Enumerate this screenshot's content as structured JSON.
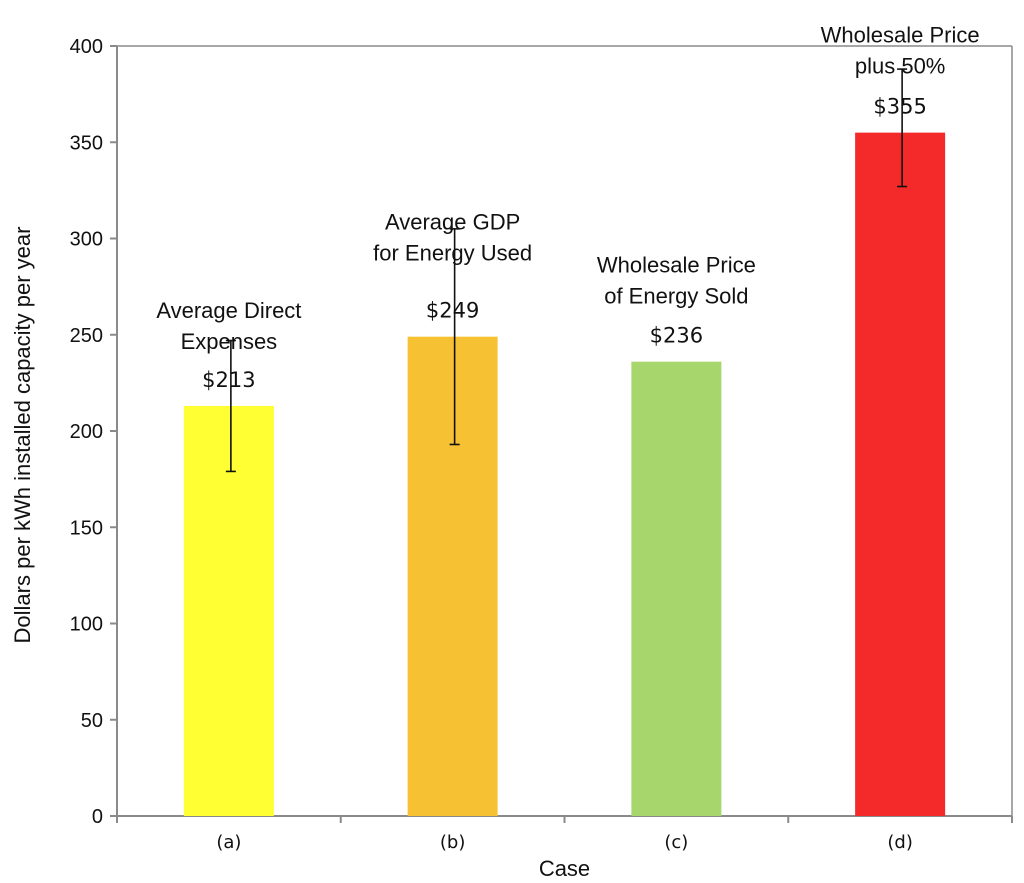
{
  "chart_data": {
    "type": "bar",
    "title": "",
    "xlabel": "Case",
    "ylabel": "Dollars per kWh installed capacity per year",
    "ylim": [
      0,
      400
    ],
    "yticks": [
      0,
      50,
      100,
      150,
      200,
      250,
      300,
      350,
      400
    ],
    "categories": [
      "(a)",
      "(b)",
      "(c)",
      "(d)"
    ],
    "values": [
      213,
      249,
      236,
      355
    ],
    "value_labels": [
      "$213",
      "$249",
      "$236",
      "$355"
    ],
    "error_bars": [
      {
        "low": 179,
        "high": 247
      },
      {
        "low": 193,
        "high": 305
      },
      null,
      {
        "low": 327,
        "high": 388
      }
    ],
    "bar_colors": [
      "#ffff33",
      "#f6c233",
      "#a6d66c",
      "#f42a2a"
    ],
    "annotations": [
      [
        "Average Direct",
        "Expenses"
      ],
      [
        "Average GDP",
        "for Energy Used"
      ],
      [
        "Wholesale Price",
        "of Energy Sold"
      ],
      [
        "Wholesale Price",
        "plus 50%"
      ]
    ],
    "grid": false,
    "legend": "none"
  }
}
